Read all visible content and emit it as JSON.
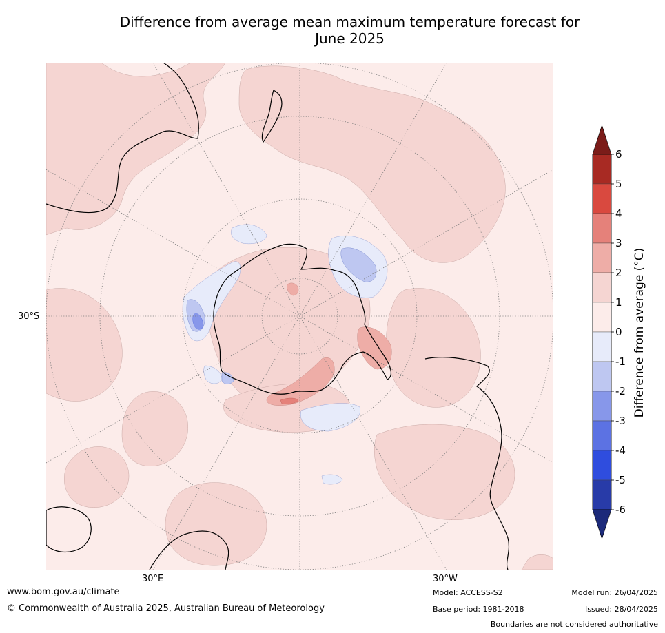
{
  "title_line1": "Difference from average mean maximum temperature forecast for",
  "title_line2": "June 2025",
  "map": {
    "projection": "south polar stereographic",
    "lat_label": "30°S",
    "lon_labels": [
      "30°E",
      "30°W"
    ],
    "highlight_regions": [
      {
        "region": "Antarctic interior",
        "category": "0 to 1"
      },
      {
        "region": "Weddell Sea / Antarctic Peninsula",
        "category": "2 to 3"
      },
      {
        "region": "Bellingshausen Sea coast",
        "category": "2 to 3"
      },
      {
        "region": "Southern Indian Ocean near 30°E",
        "category": "-2 to -3"
      }
    ]
  },
  "colorbar": {
    "title": "Difference from average (°C)",
    "ticks": [
      "6",
      "5",
      "4",
      "3",
      "2",
      "1",
      "0",
      "-1",
      "-2",
      "-3",
      "-4",
      "-5",
      "-6"
    ],
    "colors": {
      "gt6": "#7b1c19",
      "5_6": "#a82a23",
      "4_5": "#d9493f",
      "3_4": "#e5817a",
      "2_3": "#eeada7",
      "1_2": "#f5d5d2",
      "0_1": "#fcecea",
      "m1_0": "#e7ebfa",
      "m2_m1": "#bec7f1",
      "m3_m2": "#8797ea",
      "m4_m3": "#5c72e3",
      "m5_m4": "#2f4dde",
      "m6_m5": "#283ba8",
      "lt_m6": "#1c2a7a"
    }
  },
  "footer": {
    "url": "www.bom.gov.au/climate",
    "copyright": "© Commonwealth of Australia 2025, Australian Bureau of Meteorology",
    "model": "Model: ACCESS-S2",
    "base_period": "Base period: 1981-2018",
    "model_run": "Model run: 26/04/2025",
    "issued": "Issued: 28/04/2025",
    "boundaries": "Boundaries are not considered authoritative"
  }
}
